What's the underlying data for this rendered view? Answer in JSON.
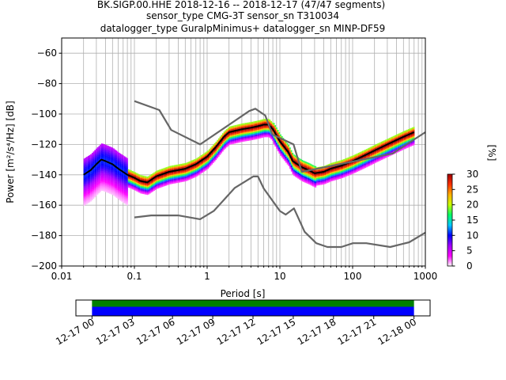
{
  "chart_data": [
    {
      "type": "heatmap",
      "title_lines": [
        "BK.SIGP.00.HHE   2018-12-16 -- 2018-12-17  (47/47 segments)",
        "sensor_type CMG-3T sensor_sn T310034",
        "datalogger_type GuralpMinimus+ datalogger_sn MINP-DF59"
      ],
      "xlabel": "Period [s]",
      "ylabel": "Power [m²/s⁴/Hz] [dB]",
      "xscale": "log",
      "xlim": [
        0.01,
        1000
      ],
      "ylim": [
        -200,
        -50
      ],
      "grid": true,
      "x_ticks": [
        {
          "value": 0.01,
          "label": "0.01"
        },
        {
          "value": 0.1,
          "label": "0.1"
        },
        {
          "value": 1,
          "label": "1"
        },
        {
          "value": 10,
          "label": "10"
        },
        {
          "value": 100,
          "label": "100"
        },
        {
          "value": 1000,
          "label": "1000"
        }
      ],
      "y_ticks": [
        -60,
        -80,
        -100,
        -120,
        -140,
        -160,
        -180,
        -200
      ],
      "colorbar": {
        "label": "[%]",
        "range": [
          0,
          30
        ],
        "ticks": [
          0,
          5,
          10,
          15,
          20,
          25,
          30
        ],
        "colors": [
          "#ffffff",
          "#ff00ff",
          "#a000ff",
          "#0000ff",
          "#00c8ff",
          "#00ff66",
          "#c8ff00",
          "#ffb000",
          "#ff3000",
          "#a00000"
        ]
      },
      "series": [
        {
          "role": "mean-psd",
          "color": "#000000",
          "x": [
            0.02,
            0.025,
            0.03,
            0.035,
            0.04,
            0.05,
            0.06,
            0.08,
            0.1,
            0.12,
            0.15,
            0.2,
            0.3,
            0.5,
            0.7,
            1.0,
            1.3,
            1.7,
            2.0,
            3.0,
            4.0,
            5.0,
            6.0,
            7.0,
            8.0,
            10.0,
            13.0,
            15.0,
            20.0,
            25.0,
            30.0,
            40.0,
            50.0,
            70.0,
            100.0,
            150.0,
            200.0,
            300.0,
            500.0,
            700.0
          ],
          "y": [
            -140,
            -137,
            -133,
            -130,
            -131,
            -133,
            -136,
            -140,
            -142,
            -144,
            -145,
            -141,
            -138,
            -136,
            -133,
            -128,
            -122,
            -115,
            -112,
            -110,
            -109,
            -108,
            -107,
            -107,
            -110,
            -118,
            -125,
            -131,
            -135,
            -137,
            -139,
            -138,
            -136,
            -134,
            -131,
            -127,
            -124,
            -120,
            -115,
            -112
          ]
        },
        {
          "role": "noise-model-high",
          "color": "#666666",
          "x": [
            0.1,
            0.22,
            0.32,
            0.8,
            3.8,
            4.6,
            6.3,
            7.9,
            15.4,
            20.0,
            354.8,
            1000.0
          ],
          "y": [
            -91.5,
            -97.4,
            -110.5,
            -120.0,
            -98.0,
            -96.5,
            -101.0,
            -113.5,
            -120.0,
            -138.0,
            -126.0,
            -112.0
          ]
        },
        {
          "role": "noise-model-low",
          "color": "#666666",
          "x": [
            0.1,
            0.17,
            0.4,
            0.8,
            1.24,
            2.4,
            4.3,
            5.0,
            6.0,
            10.0,
            12.0,
            15.6,
            21.9,
            31.6,
            45.0,
            70.0,
            101.0,
            154.0,
            328.0,
            600.0,
            1000.0
          ],
          "y": [
            -168,
            -166.7,
            -166.7,
            -169.2,
            -163.7,
            -148.6,
            -141.1,
            -141.1,
            -149.0,
            -163.8,
            -166.2,
            -162.1,
            -177.5,
            -185.0,
            -187.5,
            -187.5,
            -185.0,
            -185.0,
            -187.5,
            -184.4,
            -178.0
          ]
        }
      ]
    },
    {
      "type": "bar",
      "role": "data-coverage-timeline",
      "tick_labels": [
        "12-17 00",
        "12-17 03",
        "12-17 06",
        "12-17 09",
        "12-17 12",
        "12-17 15",
        "12-17 18",
        "12-17 21",
        "12-18 00"
      ],
      "coverage_start_hour": 0,
      "coverage_end_hour": 24,
      "span_hours": [
        -1.2,
        25.2
      ],
      "colors": {
        "green": "#008000",
        "blue": "#0000ff"
      }
    }
  ]
}
